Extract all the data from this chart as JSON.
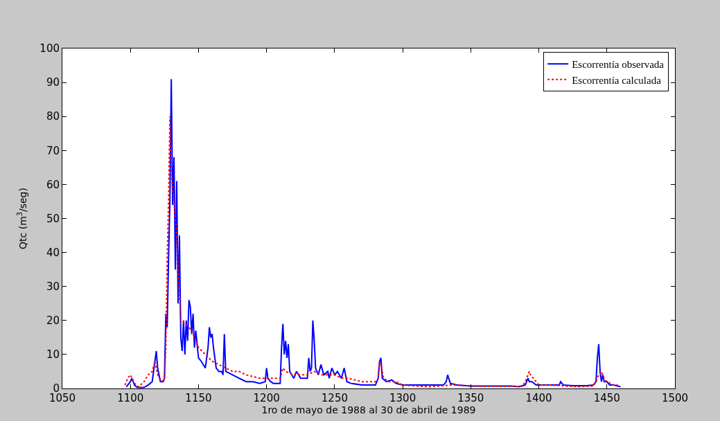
{
  "chart_data": {
    "type": "line",
    "xlabel": "1ro de mayo de 1988 al 30 de abril de 1989",
    "ylabel": "Qtc (m$^{3}$/seg)",
    "xlim": [
      1050,
      1500
    ],
    "xticks": [
      1050,
      1100,
      1150,
      1200,
      1250,
      1300,
      1350,
      1400,
      1450,
      1500
    ],
    "ylim": [
      0,
      100
    ],
    "yticks": [
      0,
      10,
      20,
      30,
      40,
      50,
      60,
      70,
      80,
      90,
      100
    ],
    "legend": "top right",
    "series": [
      {
        "name": "Escorrentía observada",
        "color": "#0000ff",
        "line_style": "solid",
        "x": [
          1097,
          1100,
          1101,
          1103,
          1105,
          1110,
          1113,
          1116,
          1118,
          1119,
          1120,
          1122,
          1124,
          1125,
          1126,
          1127,
          1128,
          1129,
          1130,
          1131,
          1132,
          1133,
          1134,
          1135,
          1136,
          1137,
          1138,
          1139,
          1140,
          1141,
          1142,
          1143,
          1144,
          1145,
          1146,
          1147,
          1148,
          1150,
          1152,
          1155,
          1157,
          1158,
          1159,
          1160,
          1161,
          1163,
          1165,
          1167,
          1168,
          1169,
          1170,
          1175,
          1180,
          1185,
          1190,
          1195,
          1199,
          1200,
          1201,
          1203,
          1205,
          1210,
          1211,
          1212,
          1213,
          1214,
          1215,
          1216,
          1217,
          1220,
          1222,
          1225,
          1230,
          1231,
          1232,
          1233,
          1234,
          1235,
          1236,
          1238,
          1240,
          1242,
          1245,
          1246,
          1248,
          1250,
          1252,
          1255,
          1257,
          1259,
          1262,
          1270,
          1280,
          1282,
          1283,
          1284,
          1285,
          1288,
          1292,
          1295,
          1300,
          1310,
          1320,
          1330,
          1332,
          1333,
          1335,
          1340,
          1350,
          1360,
          1370,
          1380,
          1385,
          1390,
          1392,
          1393,
          1395,
          1398,
          1400,
          1410,
          1415,
          1416,
          1418,
          1425,
          1435,
          1440,
          1442,
          1443,
          1444,
          1445,
          1446,
          1447,
          1448,
          1450,
          1452,
          1455,
          1460
        ],
        "values": [
          0.5,
          2,
          3,
          1,
          0.3,
          0.3,
          1,
          2,
          8,
          11,
          6,
          2,
          2,
          3,
          22,
          18,
          38,
          55,
          91,
          54,
          68,
          35,
          61,
          25,
          45,
          15,
          11,
          20,
          10,
          20,
          14,
          26,
          24,
          16,
          22,
          12,
          17,
          9,
          8,
          6,
          12,
          18,
          15,
          16,
          12,
          6,
          5,
          5,
          4,
          16,
          5,
          4,
          3,
          2,
          2,
          1.5,
          2,
          6,
          3,
          2,
          1.5,
          1.5,
          12,
          19,
          10,
          14,
          9,
          13,
          5,
          3,
          5,
          3,
          3,
          9,
          5,
          6,
          20,
          14,
          6,
          4,
          7,
          4,
          5,
          3,
          6,
          4,
          5,
          3,
          6,
          2,
          1.5,
          1,
          1,
          3,
          8,
          9,
          3,
          2,
          2.5,
          1.5,
          1,
          1,
          1,
          1,
          2,
          4,
          1.5,
          1,
          0.7,
          0.7,
          0.7,
          0.7,
          0.5,
          1,
          3,
          2,
          2,
          1,
          1,
          1,
          1,
          2,
          1,
          0.8,
          0.8,
          1,
          2,
          9,
          13,
          5,
          2,
          4,
          2,
          2,
          1,
          1,
          0.5
        ]
      },
      {
        "name": "Escorrentía calculada",
        "color": "#ff0000",
        "line_style": "dotted",
        "x": [
          1096,
          1098,
          1100,
          1103,
          1106,
          1110,
          1113,
          1116,
          1118,
          1120,
          1123,
          1125,
          1126,
          1127,
          1128,
          1129,
          1130,
          1131,
          1132,
          1134,
          1136,
          1137,
          1140,
          1143,
          1146,
          1150,
          1155,
          1160,
          1165,
          1170,
          1175,
          1180,
          1185,
          1190,
          1195,
          1200,
          1205,
          1210,
          1212,
          1214,
          1220,
          1225,
          1230,
          1235,
          1240,
          1245,
          1250,
          1255,
          1260,
          1270,
          1280,
          1282,
          1283,
          1284,
          1286,
          1290,
          1295,
          1300,
          1310,
          1320,
          1330,
          1335,
          1340,
          1350,
          1360,
          1370,
          1380,
          1388,
          1390,
          1393,
          1394,
          1396,
          1400,
          1410,
          1420,
          1430,
          1440,
          1442,
          1444,
          1446,
          1448,
          1450,
          1455,
          1458
        ],
        "values": [
          1,
          3,
          4,
          1.5,
          0.5,
          2,
          4,
          5,
          8,
          4,
          2,
          3,
          12,
          38,
          55,
          80,
          65,
          58,
          55,
          45,
          28,
          20,
          19,
          18,
          16,
          12,
          10,
          8,
          7,
          6,
          5,
          5,
          4,
          3.5,
          3,
          3,
          3,
          3,
          6,
          5,
          4,
          4,
          4,
          5,
          4,
          4,
          4,
          3,
          3,
          2,
          2,
          3,
          8,
          7,
          3,
          2,
          2,
          1,
          0.7,
          0.5,
          0.8,
          1,
          1,
          0.7,
          0.6,
          0.6,
          0.6,
          0.6,
          2,
          5,
          4,
          3,
          1,
          1,
          0.7,
          0.5,
          0.7,
          2,
          4,
          5,
          3,
          2,
          1,
          1
        ]
      }
    ]
  }
}
